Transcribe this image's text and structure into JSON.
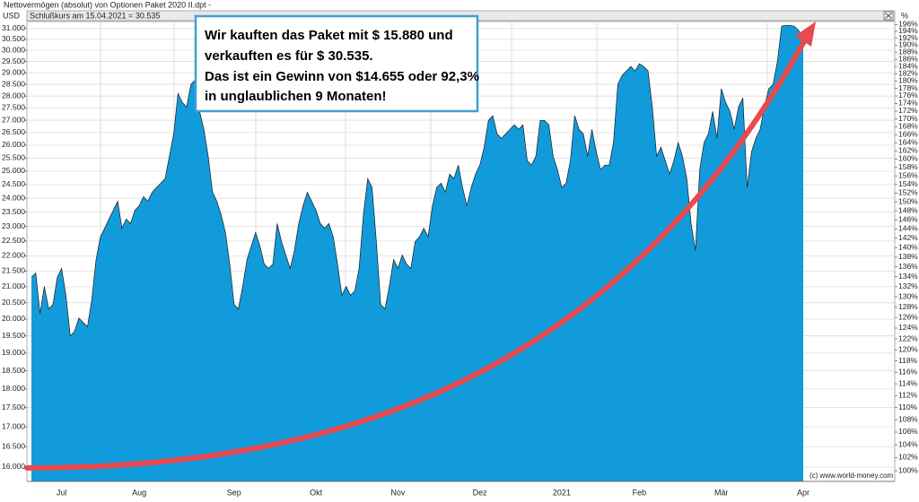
{
  "chart_data": {
    "type": "area",
    "title": "Nettovermögen (absolut) von Optionen Paket 2020 II.dpt -",
    "info": "Schlußkurs am 15.04.2021 = 30.535",
    "y_label": "USD",
    "y2_label": "%",
    "credit": "(c) www.world-money.com",
    "annotations": [
      "Wir kauften das Paket mit $ 15.880 und",
      "verkauften es für $ 30.535.",
      "Das ist ein Gewinn von $14.655 oder 92,3%",
      "in unglaublichen 9 Monaten!"
    ],
    "color": "#129bdb",
    "log": true,
    "grid": true,
    "categories": [
      null,
      null,
      null,
      null,
      null,
      null,
      null,
      "Jul",
      null,
      null,
      null,
      null,
      null,
      null,
      null,
      null,
      null,
      null,
      null,
      null,
      null,
      null,
      null,
      null,
      null,
      "Aug",
      null,
      null,
      null,
      null,
      null,
      null,
      null,
      null,
      null,
      null,
      null,
      null,
      null,
      null,
      null,
      null,
      null,
      null,
      null,
      null,
      null,
      "Sep",
      null,
      null,
      null,
      null,
      null,
      null,
      null,
      null,
      null,
      null,
      null,
      null,
      null,
      null,
      null,
      null,
      null,
      null,
      "Okt",
      null,
      null,
      null,
      null,
      null,
      null,
      null,
      null,
      null,
      null,
      null,
      null,
      null,
      null,
      null,
      null,
      null,
      null,
      "Nov",
      null,
      null,
      null,
      null,
      null,
      null,
      null,
      null,
      null,
      null,
      null,
      null,
      null,
      null,
      null,
      null,
      null,
      null,
      "Dez",
      null,
      null,
      null,
      null,
      null,
      null,
      null,
      null,
      null,
      null,
      null,
      null,
      null,
      null,
      null,
      null,
      null,
      null,
      "2021",
      null,
      null,
      null,
      null,
      null,
      null,
      null,
      null,
      null,
      null,
      null,
      null,
      null,
      null,
      null,
      null,
      null,
      "Feb",
      null,
      null,
      null,
      null,
      null,
      null,
      null,
      null,
      null,
      null,
      null,
      null,
      null,
      null,
      null,
      null,
      null,
      null,
      "Mär",
      null,
      null,
      null,
      null,
      null,
      null,
      null,
      null,
      null,
      null,
      null,
      null,
      null,
      null,
      null,
      null,
      null,
      null,
      "Apr"
    ],
    "values": [
      21300,
      21440,
      20170,
      21010,
      20310,
      20450,
      21300,
      21590,
      20730,
      19500,
      19630,
      20030,
      19900,
      19770,
      20590,
      21880,
      22640,
      22940,
      23260,
      23570,
      23890,
      22940,
      23260,
      23100,
      23570,
      23730,
      24060,
      23890,
      24220,
      24390,
      24550,
      24720,
      25570,
      26450,
      28110,
      27730,
      27550,
      28500,
      28690,
      27360,
      26630,
      25570,
      24220,
      23890,
      23410,
      22790,
      21730,
      20450,
      20310,
      21010,
      21880,
      22330,
      22790,
      22330,
      21730,
      21590,
      21730,
      23100,
      22480,
      22030,
      21590,
      22180,
      23100,
      23730,
      24220,
      23890,
      23570,
      23100,
      22940,
      23100,
      22640,
      21730,
      20730,
      21010,
      20730,
      20870,
      21590,
      23410,
      24720,
      24390,
      22480,
      20450,
      20310,
      21010,
      21880,
      21590,
      22030,
      21730,
      21590,
      22480,
      22640,
      22940,
      22640,
      23730,
      24390,
      24550,
      24220,
      24890,
      24720,
      25230,
      24390,
      23730,
      24390,
      24890,
      25230,
      25920,
      26990,
      27180,
      26450,
      26270,
      26450,
      26630,
      26810,
      26630,
      26810,
      25400,
      25230,
      25570,
      26990,
      26990,
      26810,
      25570,
      25060,
      24390,
      24550,
      25400,
      27180,
      26630,
      26450,
      25570,
      26630,
      25740,
      25060,
      25230,
      25230,
      26100,
      28500,
      28890,
      29080,
      29280,
      29080,
      29400,
      29280,
      29080,
      27550,
      25570,
      25920,
      25400,
      24890,
      25400,
      26100,
      25570,
      24720,
      23100,
      22180,
      25060,
      26100,
      26450,
      27360,
      26270,
      28310,
      27730,
      27360,
      26630,
      27550,
      27920,
      24390,
      25740,
      26270,
      26630,
      27550,
      28310,
      28500,
      29480,
      31120,
      31150,
      31150,
      31100,
      30900,
      30535
    ],
    "ylim": [
      15657,
      31333
    ],
    "yticks": [
      {
        "value": 16000,
        "label": "16.000"
      },
      {
        "value": 16500,
        "label": "16.500"
      },
      {
        "value": 17000,
        "label": "17.000"
      },
      {
        "value": 17500,
        "label": "17.500"
      },
      {
        "value": 18000,
        "label": "18.000"
      },
      {
        "value": 18500,
        "label": "18.500"
      },
      {
        "value": 19000,
        "label": "19.000"
      },
      {
        "value": 19500,
        "label": "19.500"
      },
      {
        "value": 20000,
        "label": "20.000"
      },
      {
        "value": 20500,
        "label": "20.500"
      },
      {
        "value": 21000,
        "label": "21.000"
      },
      {
        "value": 21500,
        "label": "21.500"
      },
      {
        "value": 22000,
        "label": "22.000"
      },
      {
        "value": 22500,
        "label": "22.500"
      },
      {
        "value": 23000,
        "label": "23.000"
      },
      {
        "value": 23500,
        "label": "23.500"
      },
      {
        "value": 24000,
        "label": "24.000"
      },
      {
        "value": 24500,
        "label": "24.500"
      },
      {
        "value": 25000,
        "label": "25.000"
      },
      {
        "value": 25500,
        "label": "25.500"
      },
      {
        "value": 26000,
        "label": "26.000"
      },
      {
        "value": 26500,
        "label": "26.500"
      },
      {
        "value": 27000,
        "label": "27.000"
      },
      {
        "value": 27500,
        "label": "27.500"
      },
      {
        "value": 28000,
        "label": "28.000"
      },
      {
        "value": 28500,
        "label": "28.500"
      },
      {
        "value": 29000,
        "label": "29.000"
      },
      {
        "value": 29500,
        "label": "29.500"
      },
      {
        "value": 30000,
        "label": "30.000"
      },
      {
        "value": 30500,
        "label": "30.500"
      },
      {
        "value": 31000,
        "label": "31.000"
      }
    ],
    "y2lim": [
      98.4,
      196.9
    ],
    "y2ticks": [
      {
        "value": 100,
        "label": "100%"
      },
      {
        "value": 102,
        "label": "102%"
      },
      {
        "value": 104,
        "label": "104%"
      },
      {
        "value": 106,
        "label": "106%"
      },
      {
        "value": 108,
        "label": "108%"
      },
      {
        "value": 110,
        "label": "110%"
      },
      {
        "value": 112,
        "label": "112%"
      },
      {
        "value": 114,
        "label": "114%"
      },
      {
        "value": 116,
        "label": "116%"
      },
      {
        "value": 118,
        "label": "118%"
      },
      {
        "value": 120,
        "label": "120%"
      },
      {
        "value": 122,
        "label": "122%"
      },
      {
        "value": 124,
        "label": "124%"
      },
      {
        "value": 126,
        "label": "126%"
      },
      {
        "value": 128,
        "label": "128%"
      },
      {
        "value": 130,
        "label": "130%"
      },
      {
        "value": 132,
        "label": "132%"
      },
      {
        "value": 134,
        "label": "134%"
      },
      {
        "value": 136,
        "label": "136%"
      },
      {
        "value": 138,
        "label": "138%"
      },
      {
        "value": 140,
        "label": "140%"
      },
      {
        "value": 142,
        "label": "142%"
      },
      {
        "value": 144,
        "label": "144%"
      },
      {
        "value": 146,
        "label": "146%"
      },
      {
        "value": 148,
        "label": "148%"
      },
      {
        "value": 150,
        "label": "150%"
      },
      {
        "value": 152,
        "label": "152%"
      },
      {
        "value": 154,
        "label": "154%"
      },
      {
        "value": 156,
        "label": "156%"
      },
      {
        "value": 158,
        "label": "158%"
      },
      {
        "value": 160,
        "label": "160%"
      },
      {
        "value": 162,
        "label": "162%"
      },
      {
        "value": 164,
        "label": "164%"
      },
      {
        "value": 166,
        "label": "166%"
      },
      {
        "value": 168,
        "label": "168%"
      },
      {
        "value": 170,
        "label": "170%"
      },
      {
        "value": 172,
        "label": "172%"
      },
      {
        "value": 174,
        "label": "174%"
      },
      {
        "value": 176,
        "label": "176%"
      },
      {
        "value": 178,
        "label": "178%"
      },
      {
        "value": 180,
        "label": "180%"
      },
      {
        "value": 182,
        "label": "182%"
      },
      {
        "value": 184,
        "label": "184%"
      },
      {
        "value": 186,
        "label": "186%"
      },
      {
        "value": 188,
        "label": "188%"
      },
      {
        "value": 190,
        "label": "190%"
      },
      {
        "value": 192,
        "label": "192%"
      },
      {
        "value": 194,
        "label": "194%"
      },
      {
        "value": 196,
        "label": "196%"
      }
    ]
  }
}
